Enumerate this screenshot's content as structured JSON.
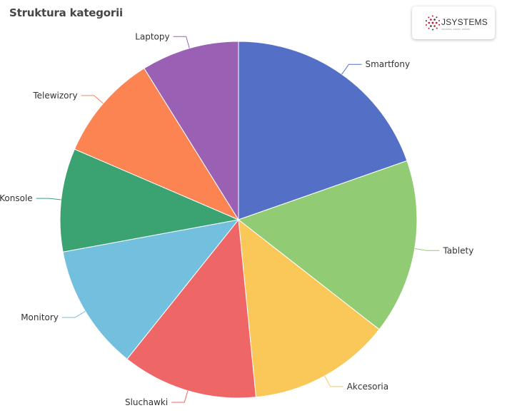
{
  "chart_data": {
    "type": "pie",
    "title": "Struktura kategorii",
    "categories": [
      "Smartfony",
      "Tablety",
      "Akcesoria",
      "Sluchawki",
      "Monitory",
      "Konsole",
      "Telewizory",
      "Laptopy"
    ],
    "values": [
      19.5,
      15.8,
      12.8,
      12.2,
      11.3,
      9.3,
      9.6,
      8.8
    ],
    "colors": [
      "#5470c6",
      "#91cc75",
      "#fac858",
      "#ee6666",
      "#73c0de",
      "#3ba272",
      "#fc8452",
      "#9a60b4"
    ],
    "start_angle": "12 o'clock, clockwise",
    "legend": "none; labels outside slices with leader lines"
  },
  "logo": {
    "text": "JSYSTEMS",
    "tagline": "SZKOLENIA · WIEDZA · ROZWÓJ",
    "accent_color": "#c8102e",
    "icon": "dot-cluster-logo-icon"
  }
}
